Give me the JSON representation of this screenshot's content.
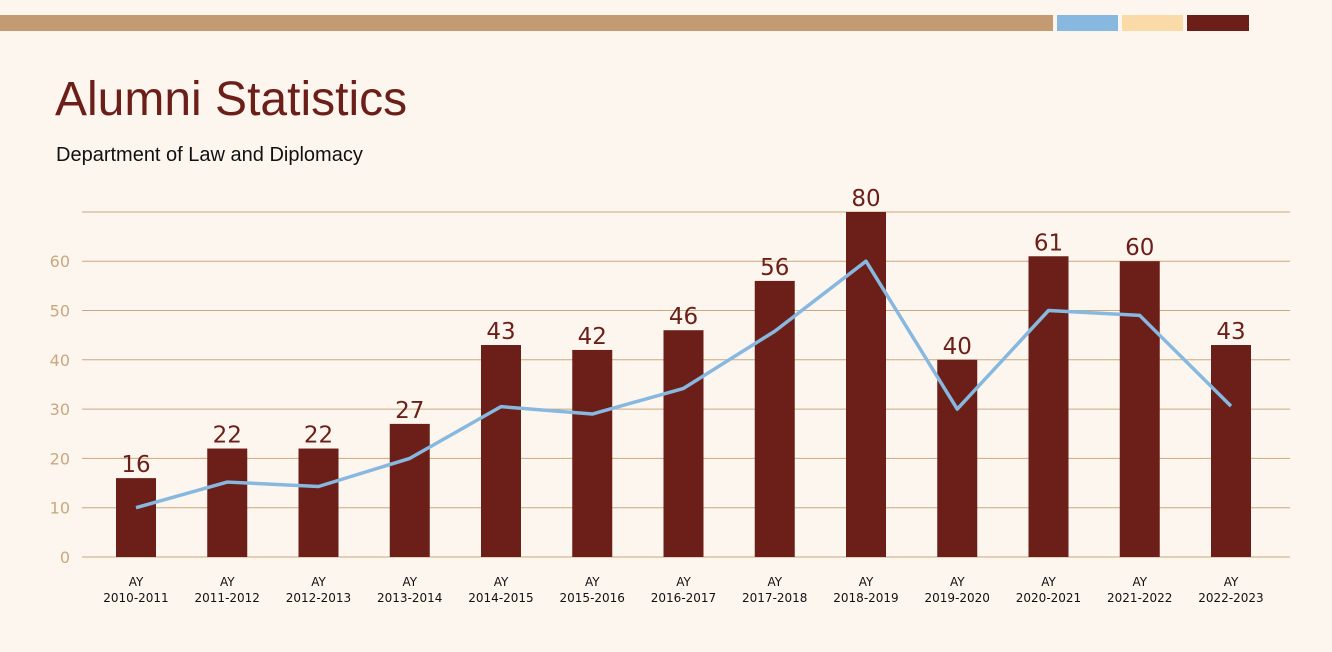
{
  "header": {
    "title": "Alumni Statistics",
    "subtitle": "Department of Law and Diplomacy"
  },
  "colors": {
    "background": "#fdf6ee",
    "accent_tan": "#c49a72",
    "accent_blue": "#87b8e0",
    "accent_cream": "#fadaa6",
    "bar": "#6b1f18",
    "line": "#87b8e0",
    "grid": "#c9a87f",
    "title": "#6b1f18"
  },
  "chart_data": {
    "type": "bar",
    "title": "",
    "xlabel": "",
    "ylabel": "",
    "ylim": [
      0,
      70
    ],
    "yticks": [
      0,
      10,
      20,
      30,
      40,
      50,
      60
    ],
    "grid": true,
    "categories": [
      [
        "AY",
        "2010-2011"
      ],
      [
        "AY",
        "2011-2012"
      ],
      [
        "AY",
        "2012-2013"
      ],
      [
        "AY",
        "2013-2014"
      ],
      [
        "AY",
        "2014-2015"
      ],
      [
        "AY",
        "2015-2016"
      ],
      [
        "AY",
        "2016-2017"
      ],
      [
        "AY",
        "2017-2018"
      ],
      [
        "AY",
        "2018-2019"
      ],
      [
        "AY",
        "2019-2020"
      ],
      [
        "AY",
        "2020-2021"
      ],
      [
        "AY",
        "2021-2022"
      ],
      [
        "AY",
        "2022-2023"
      ]
    ],
    "series": [
      {
        "type": "bar",
        "values": [
          16,
          22,
          22,
          27,
          43,
          42,
          46,
          56,
          80,
          40,
          61,
          60,
          43
        ],
        "data_labels": [
          "16",
          "22",
          "22",
          "27",
          "43",
          "42",
          "46",
          "56",
          "80",
          "40",
          "61",
          "60",
          "43"
        ]
      },
      {
        "type": "line",
        "values": [
          10,
          15.2,
          14.3,
          20,
          30.5,
          29,
          34.2,
          45.8,
          60,
          30,
          50,
          49,
          30.6
        ]
      }
    ]
  }
}
